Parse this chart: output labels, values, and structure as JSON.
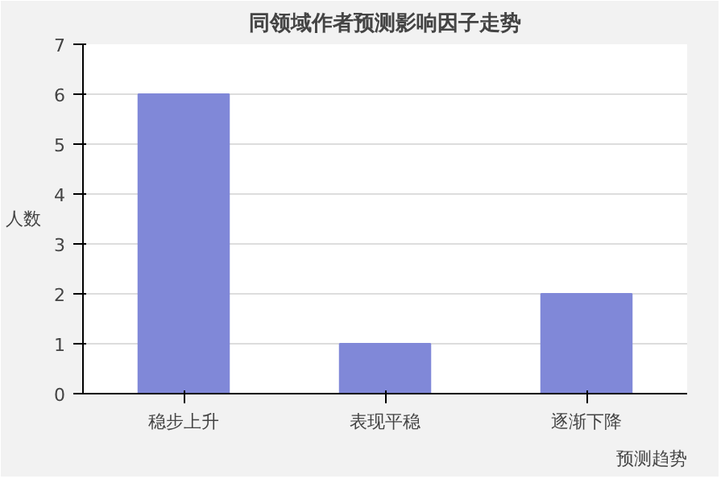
{
  "chart_data": {
    "type": "bar",
    "title": "同领域作者预测影响因子走势",
    "xlabel": "预测趋势",
    "ylabel": "人数",
    "categories": [
      "稳步上升",
      "表现平稳",
      "逐渐下降"
    ],
    "values": [
      6,
      1,
      2
    ],
    "color": "#8088d8",
    "ylim": [
      0,
      7
    ],
    "yticks": [
      0,
      1,
      2,
      3,
      4,
      5,
      6,
      7
    ],
    "grid": "y"
  }
}
